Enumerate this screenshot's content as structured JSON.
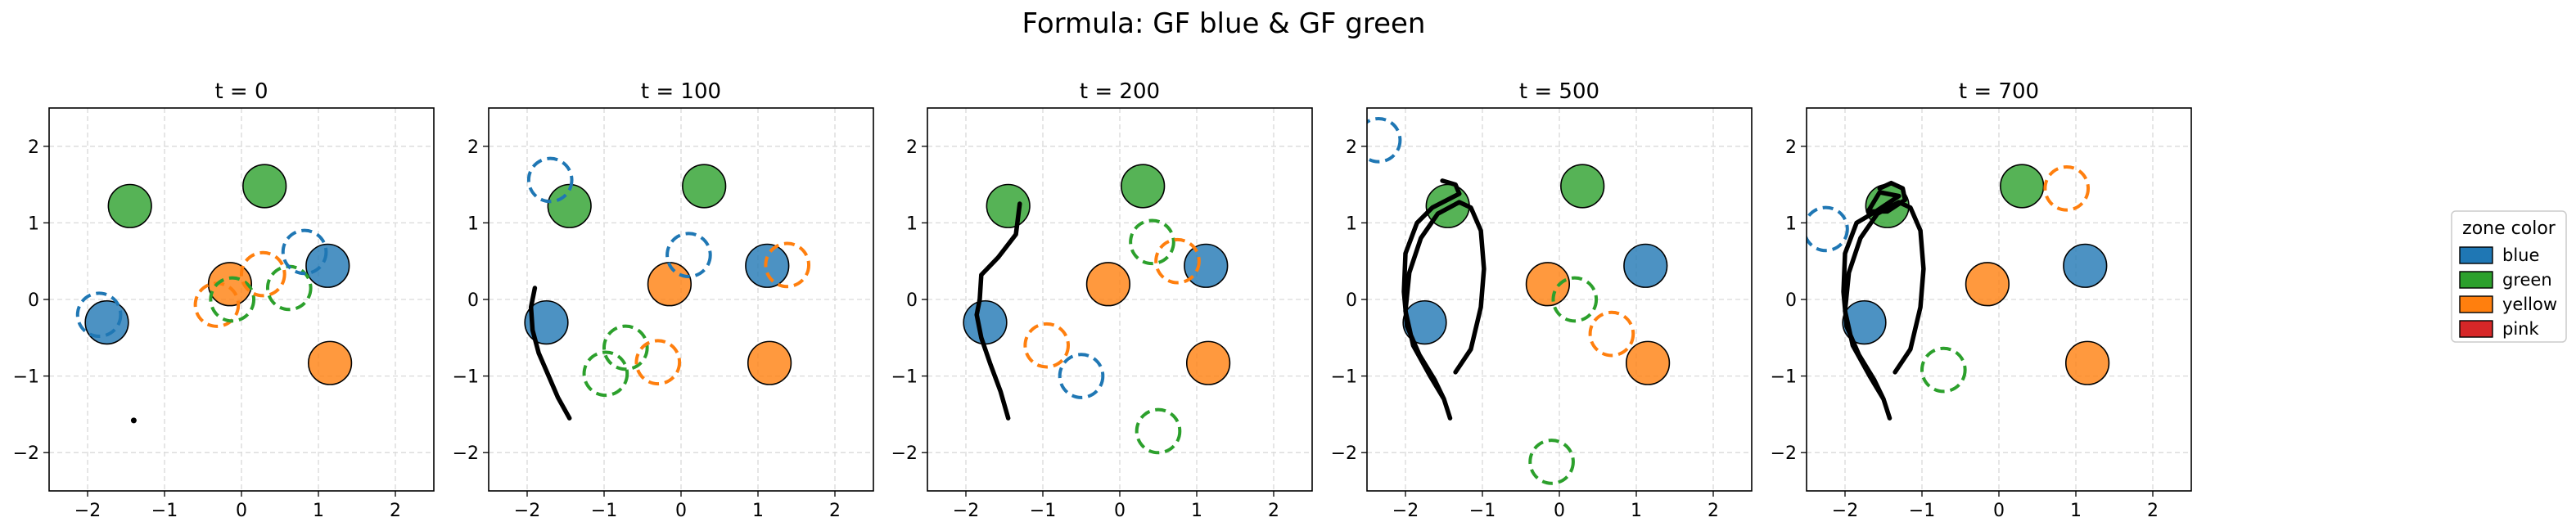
{
  "figure_title": "Formula: GF blue & GF green",
  "colors": {
    "blue": "#1f77b4",
    "green": "#2ca02c",
    "yellow": "#ff7f0e",
    "pink": "#d62728",
    "trajectory": "#000000"
  },
  "legend": {
    "title": "zone color",
    "placement": "right",
    "entries": [
      {
        "label": "blue",
        "color": "#1f77b4"
      },
      {
        "label": "green",
        "color": "#2ca02c"
      },
      {
        "label": "yellow",
        "color": "#ff7f0e"
      },
      {
        "label": "pink",
        "color": "#d62728"
      }
    ]
  },
  "chart_data": {
    "type": "scatter",
    "xlim": [
      -2.5,
      2.5
    ],
    "ylim": [
      -2.5,
      2.5
    ],
    "xticks": [
      -2,
      -1,
      0,
      1,
      2
    ],
    "yticks": [
      -2,
      -1,
      0,
      1,
      2
    ],
    "xtick_labels": [
      "−2",
      "−1",
      "0",
      "1",
      "2"
    ],
    "ytick_labels": [
      "−2",
      "−1",
      "0",
      "1",
      "2"
    ],
    "grid": true,
    "panels": [
      {
        "title": "t = 0",
        "zones": [
          {
            "color": "green",
            "x": -1.45,
            "y": 1.22,
            "r": 0.28
          },
          {
            "color": "green",
            "x": 0.3,
            "y": 1.48,
            "r": 0.28
          },
          {
            "color": "blue",
            "x": -1.75,
            "y": -0.3,
            "r": 0.28
          },
          {
            "color": "yellow",
            "x": -0.15,
            "y": 0.2,
            "r": 0.28
          },
          {
            "color": "blue",
            "x": 1.12,
            "y": 0.44,
            "r": 0.28
          },
          {
            "color": "yellow",
            "x": 1.15,
            "y": -0.83,
            "r": 0.28
          }
        ],
        "targets": [
          {
            "color": "blue",
            "x": -1.85,
            "y": -0.2
          },
          {
            "color": "yellow",
            "x": -0.32,
            "y": -0.07
          },
          {
            "color": "green",
            "x": -0.12,
            "y": 0.0
          },
          {
            "color": "yellow",
            "x": 0.28,
            "y": 0.33
          },
          {
            "color": "green",
            "x": 0.62,
            "y": 0.15
          },
          {
            "color": "blue",
            "x": 0.82,
            "y": 0.62
          }
        ],
        "trajectory": [
          [
            -1.4,
            -1.58
          ],
          [
            -1.4,
            -1.58
          ]
        ]
      },
      {
        "title": "t = 100",
        "zones": [
          {
            "color": "green",
            "x": -1.45,
            "y": 1.22,
            "r": 0.28
          },
          {
            "color": "green",
            "x": 0.3,
            "y": 1.48,
            "r": 0.28
          },
          {
            "color": "blue",
            "x": -1.75,
            "y": -0.3,
            "r": 0.28
          },
          {
            "color": "yellow",
            "x": -0.15,
            "y": 0.2,
            "r": 0.28
          },
          {
            "color": "blue",
            "x": 1.12,
            "y": 0.44,
            "r": 0.28
          },
          {
            "color": "yellow",
            "x": 1.15,
            "y": -0.83,
            "r": 0.28
          }
        ],
        "targets": [
          {
            "color": "blue",
            "x": -1.7,
            "y": 1.56
          },
          {
            "color": "blue",
            "x": 0.1,
            "y": 0.58
          },
          {
            "color": "yellow",
            "x": 1.38,
            "y": 0.45
          },
          {
            "color": "green",
            "x": -0.72,
            "y": -0.63
          },
          {
            "color": "green",
            "x": -0.98,
            "y": -0.97
          },
          {
            "color": "yellow",
            "x": -0.3,
            "y": -0.82
          }
        ],
        "trajectory": [
          [
            -1.9,
            0.15
          ],
          [
            -1.95,
            -0.1
          ],
          [
            -1.93,
            -0.4
          ],
          [
            -1.85,
            -0.7
          ],
          [
            -1.72,
            -1.0
          ],
          [
            -1.6,
            -1.28
          ],
          [
            -1.45,
            -1.55
          ]
        ]
      },
      {
        "title": "t = 200",
        "zones": [
          {
            "color": "green",
            "x": -1.45,
            "y": 1.22,
            "r": 0.28
          },
          {
            "color": "green",
            "x": 0.3,
            "y": 1.48,
            "r": 0.28
          },
          {
            "color": "blue",
            "x": -1.75,
            "y": -0.3,
            "r": 0.28
          },
          {
            "color": "yellow",
            "x": -0.15,
            "y": 0.2,
            "r": 0.28
          },
          {
            "color": "blue",
            "x": 1.12,
            "y": 0.44,
            "r": 0.28
          },
          {
            "color": "yellow",
            "x": 1.15,
            "y": -0.83,
            "r": 0.28
          }
        ],
        "targets": [
          {
            "color": "green",
            "x": 0.42,
            "y": 0.75
          },
          {
            "color": "yellow",
            "x": 0.75,
            "y": 0.5
          },
          {
            "color": "yellow",
            "x": -0.95,
            "y": -0.6
          },
          {
            "color": "blue",
            "x": -0.5,
            "y": -1.0
          },
          {
            "color": "green",
            "x": 0.5,
            "y": -1.72
          }
        ],
        "trajectory": [
          [
            -1.3,
            1.25
          ],
          [
            -1.35,
            0.85
          ],
          [
            -1.58,
            0.55
          ],
          [
            -1.8,
            0.32
          ],
          [
            -1.82,
            0.0
          ],
          [
            -1.86,
            -0.2
          ],
          [
            -1.8,
            -0.5
          ],
          [
            -1.68,
            -0.85
          ],
          [
            -1.55,
            -1.2
          ],
          [
            -1.45,
            -1.55
          ]
        ]
      },
      {
        "title": "t = 500",
        "zones": [
          {
            "color": "green",
            "x": -1.45,
            "y": 1.22,
            "r": 0.28
          },
          {
            "color": "green",
            "x": 0.3,
            "y": 1.48,
            "r": 0.28
          },
          {
            "color": "blue",
            "x": -1.75,
            "y": -0.3,
            "r": 0.28
          },
          {
            "color": "yellow",
            "x": -0.15,
            "y": 0.2,
            "r": 0.28
          },
          {
            "color": "blue",
            "x": 1.12,
            "y": 0.44,
            "r": 0.28
          },
          {
            "color": "yellow",
            "x": 1.15,
            "y": -0.83,
            "r": 0.28
          }
        ],
        "targets": [
          {
            "color": "blue",
            "x": -2.35,
            "y": 2.08
          },
          {
            "color": "green",
            "x": 0.2,
            "y": 0.0
          },
          {
            "color": "yellow",
            "x": 0.68,
            "y": -0.45
          },
          {
            "color": "green",
            "x": -0.1,
            "y": -2.12
          }
        ],
        "trajectory": [
          [
            -1.52,
            1.55
          ],
          [
            -1.35,
            1.5
          ],
          [
            -1.3,
            1.38
          ],
          [
            -1.65,
            1.2
          ],
          [
            -1.85,
            1.0
          ],
          [
            -2.0,
            0.6
          ],
          [
            -2.02,
            0.1
          ],
          [
            -1.98,
            -0.35
          ],
          [
            -1.82,
            -0.72
          ],
          [
            -1.62,
            -1.05
          ],
          [
            -1.5,
            -1.3
          ],
          [
            -1.42,
            -1.55
          ],
          [
            -1.5,
            -1.3
          ],
          [
            -1.68,
            -1.0
          ],
          [
            -1.9,
            -0.6
          ],
          [
            -2.0,
            -0.15
          ],
          [
            -1.95,
            0.35
          ],
          [
            -1.8,
            0.8
          ],
          [
            -1.58,
            1.12
          ],
          [
            -1.3,
            1.27
          ],
          [
            -1.15,
            1.2
          ],
          [
            -1.02,
            0.9
          ],
          [
            -0.98,
            0.4
          ],
          [
            -1.02,
            -0.1
          ],
          [
            -1.15,
            -0.65
          ],
          [
            -1.35,
            -0.95
          ]
        ]
      },
      {
        "title": "t = 700",
        "zones": [
          {
            "color": "green",
            "x": -1.45,
            "y": 1.22,
            "r": 0.28
          },
          {
            "color": "green",
            "x": 0.3,
            "y": 1.48,
            "r": 0.28
          },
          {
            "color": "blue",
            "x": -1.75,
            "y": -0.3,
            "r": 0.28
          },
          {
            "color": "yellow",
            "x": -0.15,
            "y": 0.2,
            "r": 0.28
          },
          {
            "color": "blue",
            "x": 1.12,
            "y": 0.44,
            "r": 0.28
          },
          {
            "color": "yellow",
            "x": 1.15,
            "y": -0.83,
            "r": 0.28
          }
        ],
        "targets": [
          {
            "color": "blue",
            "x": -2.25,
            "y": 0.92
          },
          {
            "color": "yellow",
            "x": 0.88,
            "y": 1.45
          },
          {
            "color": "green",
            "x": -0.72,
            "y": -0.92
          }
        ],
        "trajectory": [
          [
            -1.55,
            1.45
          ],
          [
            -1.4,
            1.52
          ],
          [
            -1.25,
            1.45
          ],
          [
            -1.22,
            1.3
          ],
          [
            -1.45,
            1.15
          ],
          [
            -1.7,
            1.15
          ],
          [
            -1.55,
            1.4
          ],
          [
            -1.3,
            1.35
          ],
          [
            -1.6,
            1.15
          ],
          [
            -1.85,
            1.0
          ],
          [
            -2.0,
            0.6
          ],
          [
            -2.02,
            0.1
          ],
          [
            -1.98,
            -0.35
          ],
          [
            -1.82,
            -0.72
          ],
          [
            -1.62,
            -1.05
          ],
          [
            -1.5,
            -1.3
          ],
          [
            -1.42,
            -1.55
          ],
          [
            -1.5,
            -1.3
          ],
          [
            -1.68,
            -1.0
          ],
          [
            -1.9,
            -0.6
          ],
          [
            -2.0,
            -0.15
          ],
          [
            -1.95,
            0.35
          ],
          [
            -1.8,
            0.8
          ],
          [
            -1.58,
            1.12
          ],
          [
            -1.3,
            1.27
          ],
          [
            -1.15,
            1.2
          ],
          [
            -1.02,
            0.9
          ],
          [
            -0.98,
            0.4
          ],
          [
            -1.02,
            -0.1
          ],
          [
            -1.15,
            -0.65
          ],
          [
            -1.35,
            -0.95
          ]
        ]
      }
    ]
  }
}
